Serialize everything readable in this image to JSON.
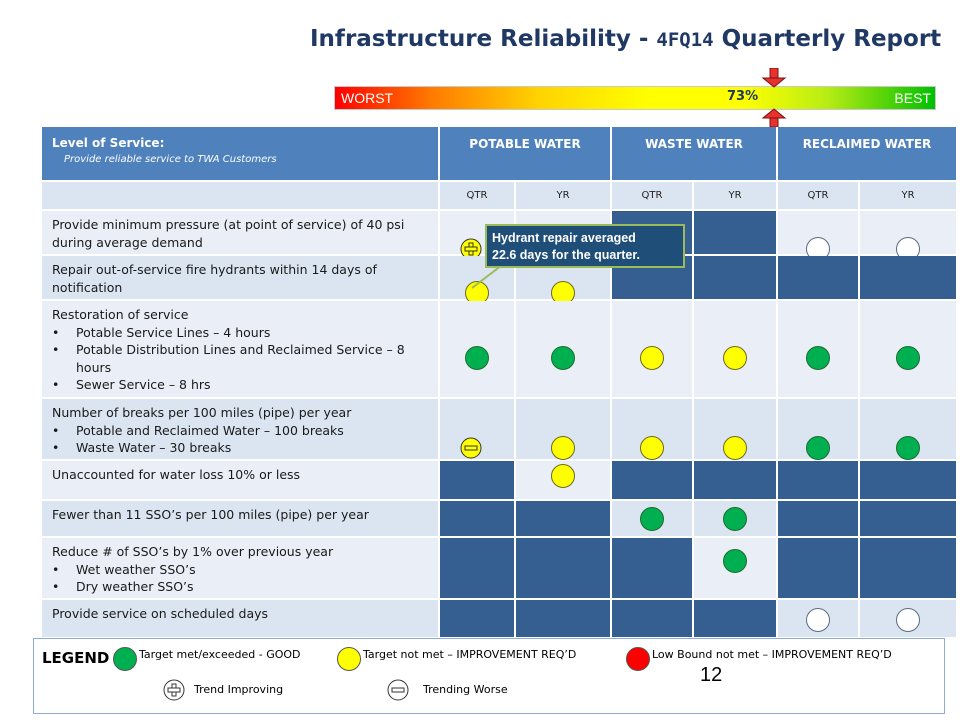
{
  "header": {
    "title_main": "Infrastructure Reliability - ",
    "title_quarter": "4FQ14",
    "title_tail": " Quarterly Report"
  },
  "gauge": {
    "worst_label": "WORST",
    "best_label": "BEST",
    "percent_label": "73%",
    "value_percent": 73,
    "colors": {
      "worst": "#ff0000",
      "mid": "#ffff00",
      "best": "#00c000",
      "marker": "#e8322e"
    }
  },
  "table": {
    "los_title": "Level of Service:",
    "los_subtitle": "Provide reliable service to TWA Customers",
    "columns": [
      "POTABLE WATER",
      "WASTE WATER",
      "RECLAIMED WATER"
    ],
    "subcolumns": [
      "QTR",
      "YR",
      "QTR",
      "YR",
      "QTR",
      "YR"
    ],
    "rows": [
      {
        "label": "Provide minimum pressure (at point of service) of 40 psi during average demand",
        "bullets": []
      },
      {
        "label": "Repair out-of-service fire hydrants within 14 days of notification",
        "bullets": []
      },
      {
        "label": "Restoration of service",
        "bullets": [
          "Potable Service Lines – 4 hours",
          "Potable Distribution Lines and Reclaimed Service – 8 hours",
          "Sewer Service – 8 hrs"
        ]
      },
      {
        "label": "Number of breaks per 100 miles (pipe) per year",
        "bullets": [
          "Potable and Reclaimed Water – 100 breaks",
          "Waste Water – 30 breaks"
        ]
      },
      {
        "label": "Unaccounted for water loss 10% or less",
        "bullets": []
      },
      {
        "label": "Fewer than 11 SSO’s per 100 miles (pipe) per year",
        "bullets": []
      },
      {
        "label": "Reduce # of SSO’s by 1% over previous year",
        "bullets": [
          "Wet weather SSO’s",
          "Dry weather SSO’s"
        ]
      },
      {
        "label": "Provide service on scheduled days",
        "bullets": []
      }
    ],
    "status": [
      [
        "trend-improving",
        "none",
        "dark",
        "dark",
        "white",
        "white"
      ],
      [
        "yellow",
        "yellow",
        "dark",
        "dark",
        "dark",
        "dark"
      ],
      [
        "green",
        "green",
        "yellow",
        "yellow",
        "green",
        "green"
      ],
      [
        "trend-worse",
        "yellow",
        "yellow",
        "yellow",
        "green",
        "green"
      ],
      [
        "dark",
        "yellow",
        "dark",
        "dark",
        "dark",
        "dark"
      ],
      [
        "dark",
        "dark",
        "green",
        "green",
        "dark",
        "dark"
      ],
      [
        "dark",
        "dark",
        "dark",
        "green",
        "dark",
        "dark"
      ],
      [
        "dark",
        "dark",
        "dark",
        "dark",
        "white",
        "white"
      ]
    ]
  },
  "callout": {
    "text_line1": "Hydrant repair averaged",
    "text_line2": "22.6 days for the quarter."
  },
  "legend": {
    "title": "LEGEND",
    "good": "Target met/exceeded - GOOD",
    "not_met": "Target not met – IMPROVEMENT REQ’D",
    "low_bound": "Low Bound not met – IMPROVEMENT REQ’D",
    "trend_improving": "Trend Improving",
    "trend_worse": "Trending Worse"
  },
  "page_number": "12"
}
